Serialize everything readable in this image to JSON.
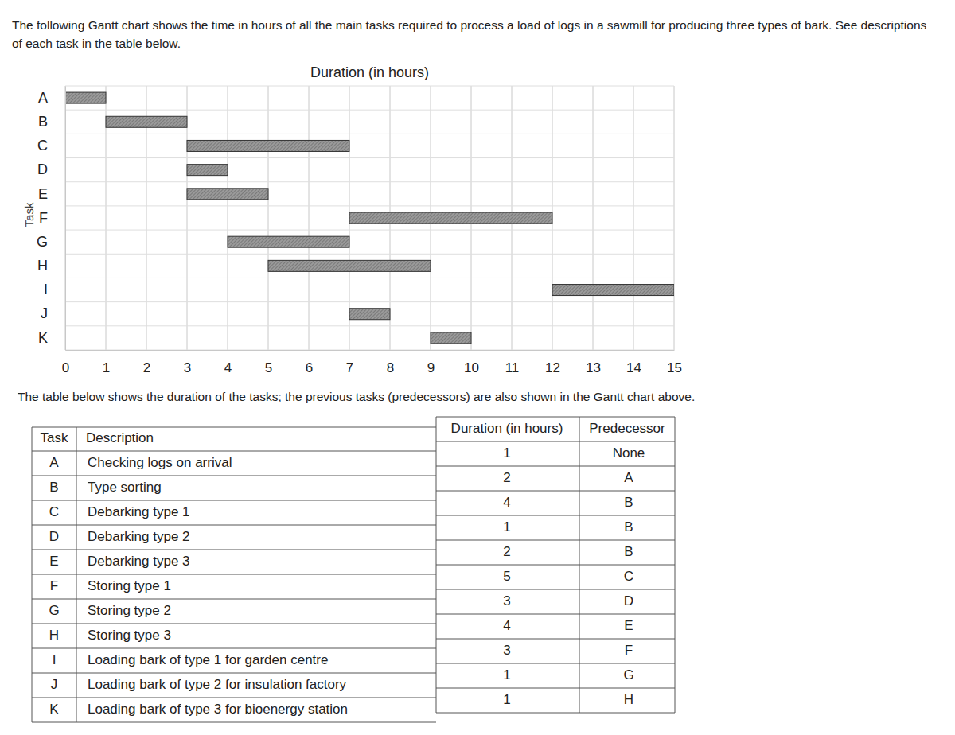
{
  "intro": [
    "The following Gantt chart shows the time in hours of all the main tasks required to process a load of logs in a sawmill for producing three types of bark. See descriptions",
    "of each task in the table below."
  ],
  "chart_data": {
    "type": "gantt",
    "orientation": "horizontal",
    "x_label": "Duration (in hours)",
    "y_label": "Task",
    "categories": [
      "A",
      "B",
      "C",
      "D",
      "E",
      "F",
      "G",
      "H",
      "I",
      "J",
      "K"
    ],
    "start": [
      0,
      1,
      3,
      3,
      3,
      7,
      4,
      5,
      12,
      7,
      9
    ],
    "end": [
      1,
      3,
      7,
      4,
      5,
      12,
      7,
      9,
      15,
      8,
      10
    ],
    "xlim": [
      0,
      15
    ],
    "xticks": [
      0,
      1,
      2,
      3,
      4,
      5,
      6,
      7,
      8,
      9,
      10,
      11,
      12,
      13,
      14,
      15
    ],
    "grid": true,
    "color": "#9a9a9a"
  },
  "note": "The table below shows the duration of the tasks; the previous tasks (predecessors) are also shown in the Gantt chart above.",
  "table": {
    "header": [
      "Task",
      "Description",
      "Duration (in hours)",
      "Predecessor"
    ],
    "rows": [
      [
        "A",
        "Checking logs on arrival",
        1,
        "None"
      ],
      [
        "B",
        "Type sorting",
        2,
        "A"
      ],
      [
        "C",
        "Debarking type 1",
        4,
        "B"
      ],
      [
        "D",
        "Debarking type 2",
        1,
        "B"
      ],
      [
        "E",
        "Debarking type 3",
        2,
        "B"
      ],
      [
        "F",
        "Storing type 1",
        5,
        "C"
      ],
      [
        "G",
        "Storing type 2",
        3,
        "D"
      ],
      [
        "H",
        "Storing type 3",
        4,
        "E"
      ],
      [
        "I",
        "Loading bark of type 1 for garden centre",
        3,
        "F"
      ],
      [
        "J",
        "Loading bark of type 2 for insulation factory",
        1,
        "G"
      ],
      [
        "K",
        "Loading bark of type 3 for bioenergy station",
        1,
        "H"
      ]
    ]
  }
}
